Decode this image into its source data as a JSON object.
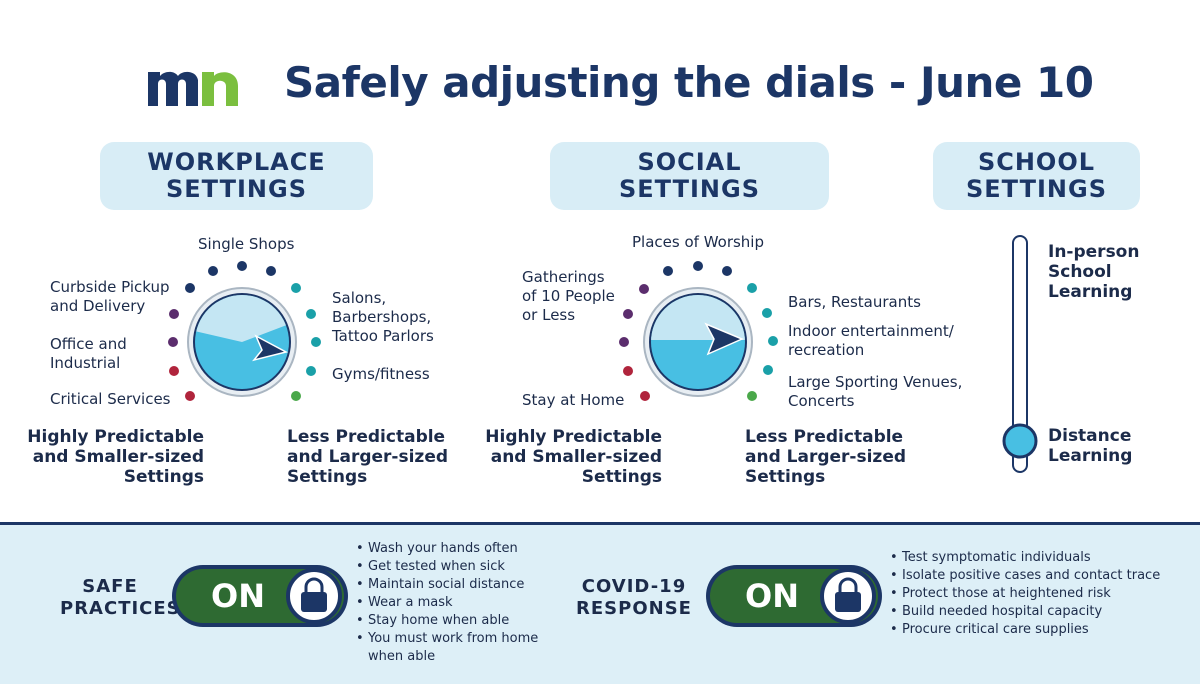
{
  "title": "Safely adjusting the dials - June 10",
  "logo": {
    "icon": "mn-logo-icon",
    "text": "mn"
  },
  "sections": {
    "workplace": {
      "heading": "WORKPLACE SETTINGS",
      "heading_line1": "WORKPLACE",
      "heading_line2": "SETTINGS",
      "dial_labels": {
        "single_shops": "Single Shops",
        "curbside_1": "Curbside Pickup",
        "curbside_2": "and Delivery",
        "office_1": "Office and",
        "office_2": "Industrial",
        "critical": "Critical Services",
        "salons_1": "Salons,",
        "salons_2": "Barbershops,",
        "salons_3": "Tattoo Parlors",
        "gyms": "Gyms/fitness"
      },
      "left_pole": [
        "Highly Predictable",
        "and Smaller-sized",
        "Settings"
      ],
      "right_pole": [
        "Less Predictable",
        "and Larger-sized",
        "Settings"
      ]
    },
    "social": {
      "heading_line1": "SOCIAL",
      "heading_line2": "SETTINGS",
      "dial_labels": {
        "worship": "Places of Worship",
        "gatherings_1": "Gatherings",
        "gatherings_2": "of 10 People",
        "gatherings_3": "or Less",
        "stay_home": "Stay at Home",
        "bars": "Bars, Restaurants",
        "indoor_1": "Indoor entertainment/",
        "indoor_2": "recreation",
        "sporting_1": "Large Sporting Venues,",
        "sporting_2": "Concerts"
      },
      "left_pole": [
        "Highly Predictable",
        "and Smaller-sized",
        "Settings"
      ],
      "right_pole": [
        "Less Predictable",
        "and Larger-sized",
        "Settings"
      ]
    },
    "school": {
      "heading_line1": "SCHOOL",
      "heading_line2": "SETTINGS",
      "slider_top": [
        "In-person",
        "School",
        "Learning"
      ],
      "slider_bottom": [
        "Distance",
        "Learning"
      ],
      "slider_level": 0
    }
  },
  "safe_practices": {
    "label_1": "SAFE",
    "label_2": "PRACTICES",
    "toggle": "ON",
    "icon": "lock-icon",
    "items": [
      "Wash your hands often",
      "Get tested when sick",
      "Maintain social distance",
      "Wear a mask",
      "Stay home when able",
      "You must work from home when able"
    ]
  },
  "covid_response": {
    "label_1": "COVID-19",
    "label_2": "RESPONSE",
    "toggle": "ON",
    "icon": "lock-icon",
    "items": [
      "Test symptomatic individuals",
      "Isolate positive cases and contact trace",
      "Protect those at heightened risk",
      "Build needed hospital capacity",
      "Procure critical care supplies"
    ]
  },
  "colors": {
    "navy": "#1c3666",
    "dial_fill": "#48bfe3",
    "dial_light": "#c4e6f3",
    "pill_bg": "#d8edf6",
    "toggle_green": "#2e6a32",
    "dot_red": "#b0243c",
    "dot_purple": "#5b2d6d",
    "dot_navy": "#1c3666",
    "dot_teal": "#1aa0a8",
    "dot_green": "#4aa84a"
  }
}
